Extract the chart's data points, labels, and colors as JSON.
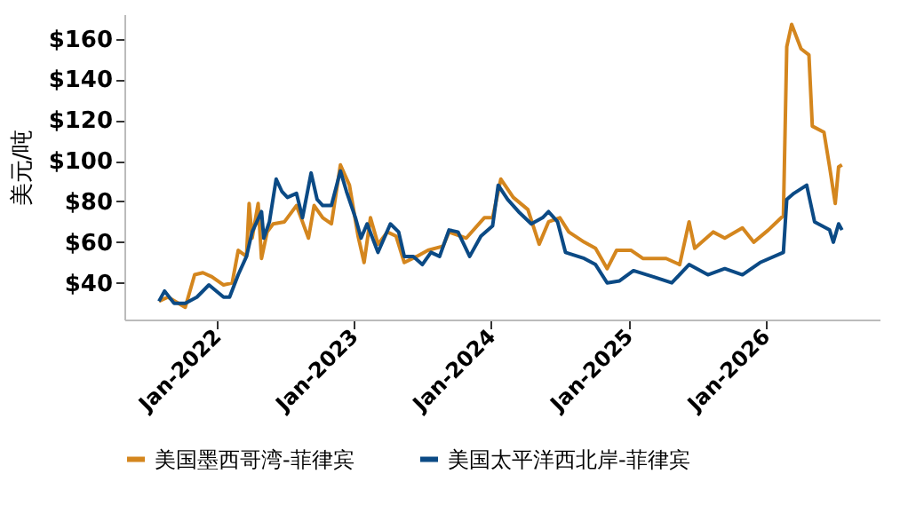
{
  "chart_data": {
    "type": "line",
    "ylabel": "美元/吨",
    "series": [
      {
        "name": "美国墨西哥湾-菲律宾",
        "color": "#d4861e",
        "x": [
          "2021-08-01",
          "2021-08-25",
          "2021-10-10",
          "2021-11-04",
          "2021-11-26",
          "2021-12-20",
          "2022-01-20",
          "2022-02-12",
          "2022-02-28",
          "2022-03-22",
          "2022-03-29",
          "2022-04-06",
          "2022-04-22",
          "2022-05-01",
          "2022-05-16",
          "2022-06-01",
          "2022-07-01",
          "2022-08-02",
          "2022-08-18",
          "2022-09-03",
          "2022-09-18",
          "2022-10-11",
          "2022-11-03",
          "2022-11-27",
          "2022-12-21",
          "2023-01-13",
          "2023-01-29",
          "2023-02-15",
          "2023-03-07",
          "2023-04-01",
          "2023-04-24",
          "2023-05-16",
          "2023-06-18",
          "2023-07-18",
          "2023-08-27",
          "2023-09-12",
          "2023-10-28",
          "2023-12-15",
          "2024-01-06",
          "2024-01-28",
          "2024-03-01",
          "2024-04-09",
          "2024-05-09",
          "2024-06-03",
          "2024-07-03",
          "2024-07-27",
          "2024-09-06",
          "2024-10-06",
          "2024-11-06",
          "2024-12-01",
          "2025-01-09",
          "2025-02-09",
          "2025-04-12",
          "2025-05-18",
          "2025-06-12",
          "2025-06-27",
          "2025-08-15",
          "2025-09-15",
          "2025-11-01",
          "2025-12-01",
          "2026-01-09",
          "2026-02-18",
          "2026-02-27",
          "2026-03-12",
          "2026-04-06",
          "2026-04-27",
          "2026-05-06",
          "2026-06-06",
          "2026-06-21",
          "2026-07-06",
          "2026-07-15",
          "2026-07-24"
        ],
        "values": [
          31,
          33,
          28,
          44,
          45,
          43,
          39,
          40,
          56,
          53,
          79,
          62,
          79,
          52,
          65,
          69,
          70,
          78,
          70,
          62,
          78,
          72,
          69,
          98,
          88,
          63,
          50,
          72,
          59,
          65,
          63,
          50,
          53,
          56,
          58,
          65,
          62,
          72,
          72,
          91,
          82,
          76,
          59,
          70,
          72,
          65,
          60,
          57,
          47,
          56,
          56,
          52,
          52,
          49,
          70,
          57,
          65,
          62,
          67,
          60,
          66,
          73,
          156,
          167,
          155,
          152,
          117,
          114,
          97,
          79,
          97,
          98
        ]
      },
      {
        "name": "美国太平洋西北岸-菲律宾",
        "color": "#0b4a85",
        "x": [
          "2021-08-01",
          "2021-08-16",
          "2021-09-10",
          "2021-10-10",
          "2021-11-10",
          "2021-12-12",
          "2022-01-20",
          "2022-02-05",
          "2022-02-28",
          "2022-03-22",
          "2022-04-06",
          "2022-05-01",
          "2022-05-07",
          "2022-05-22",
          "2022-06-09",
          "2022-06-24",
          "2022-07-09",
          "2022-08-02",
          "2022-08-18",
          "2022-09-10",
          "2022-09-26",
          "2022-10-11",
          "2022-11-03",
          "2022-11-27",
          "2022-12-13",
          "2023-01-06",
          "2023-01-21",
          "2023-02-06",
          "2023-03-07",
          "2023-04-09",
          "2023-05-01",
          "2023-05-16",
          "2023-06-09",
          "2023-07-03",
          "2023-07-26",
          "2023-08-18",
          "2023-09-12",
          "2023-10-06",
          "2023-11-06",
          "2023-12-06",
          "2024-01-06",
          "2024-01-21",
          "2024-02-15",
          "2024-03-15",
          "2024-04-18",
          "2024-05-18",
          "2024-06-03",
          "2024-06-27",
          "2024-07-18",
          "2024-09-06",
          "2024-10-06",
          "2024-11-06",
          "2024-12-09",
          "2025-01-15",
          "2025-03-09",
          "2025-04-27",
          "2025-06-12",
          "2025-08-01",
          "2025-09-15",
          "2025-11-01",
          "2025-12-18",
          "2026-02-18",
          "2026-02-27",
          "2026-03-18",
          "2026-04-21",
          "2026-05-12",
          "2026-06-21",
          "2026-07-01",
          "2026-07-15",
          "2026-07-24"
        ],
        "values": [
          31,
          36,
          30,
          30,
          33,
          39,
          33,
          33,
          44,
          53,
          65,
          75,
          62,
          70,
          91,
          85,
          82,
          84,
          72,
          94,
          81,
          78,
          78,
          95,
          85,
          72,
          62,
          69,
          55,
          69,
          65,
          53,
          53,
          49,
          55,
          53,
          66,
          65,
          53,
          63,
          68,
          88,
          81,
          75,
          69,
          72,
          75,
          70,
          55,
          52,
          49,
          40,
          41,
          46,
          43,
          40,
          49,
          44,
          47,
          44,
          50,
          55,
          81,
          84,
          88,
          70,
          66,
          60,
          69,
          66
        ]
      }
    ],
    "xlim": [
      "2021-05-01",
      "2026-11-01"
    ],
    "xticks": [
      {
        "value": "2022-01",
        "label": "Jan-2022"
      },
      {
        "value": "2023-01",
        "label": "Jan-2023"
      },
      {
        "value": "2024-01",
        "label": "Jan-2024"
      },
      {
        "value": "2025-01",
        "label": "Jan-2025"
      },
      {
        "value": "2026-01",
        "label": "Jan-2026"
      }
    ],
    "ylim": [
      22,
      172
    ],
    "yticks": [
      {
        "value": 40,
        "label": "$40"
      },
      {
        "value": 60,
        "label": "$60"
      },
      {
        "value": 80,
        "label": "$80"
      },
      {
        "value": 100,
        "label": "$100"
      },
      {
        "value": 120,
        "label": "$120"
      },
      {
        "value": 140,
        "label": "$140"
      },
      {
        "value": 160,
        "label": "$160"
      }
    ],
    "grid": false,
    "legend": "bottom",
    "marker": "none",
    "line_style": "solid"
  }
}
